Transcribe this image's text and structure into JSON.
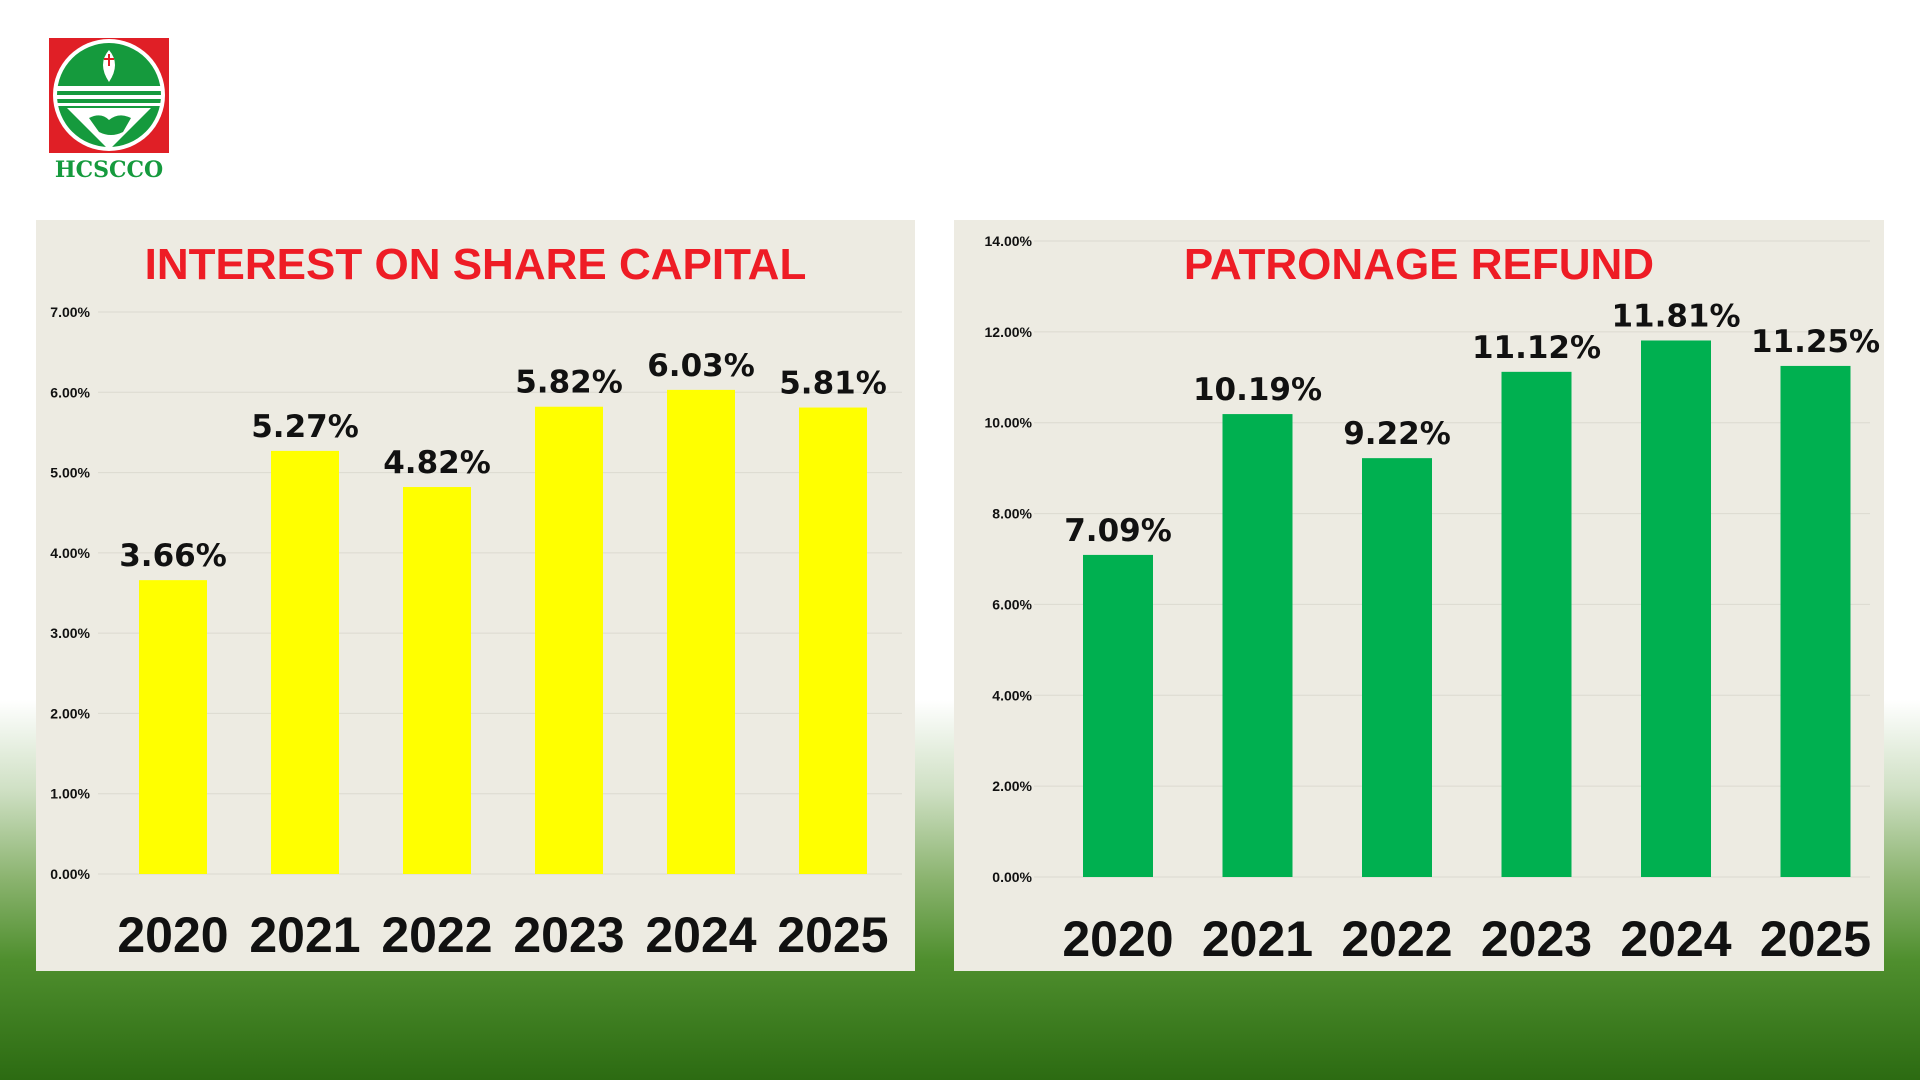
{
  "logo": {
    "text": "HCSCCO",
    "icon": "cooperative-handshake-logo-icon"
  },
  "colors": {
    "left_bars": "#ffff00",
    "right_bars": "#00b050",
    "title": "#ee1c25",
    "panel_bg": "#edebe2",
    "label": "#111111"
  },
  "chart_data": [
    {
      "type": "bar",
      "title": "INTEREST ON SHARE CAPITAL",
      "categories": [
        "2020",
        "2021",
        "2022",
        "2023",
        "2024",
        "2025"
      ],
      "values": [
        3.66,
        5.27,
        4.82,
        5.82,
        6.03,
        5.81
      ],
      "data_labels": [
        "3.66%",
        "5.27%",
        "4.82%",
        "5.82%",
        "6.03%",
        "5.81%"
      ],
      "ylim": [
        0,
        7
      ],
      "yticks": [
        "0.00%",
        "1.00%",
        "2.00%",
        "3.00%",
        "4.00%",
        "5.00%",
        "6.00%",
        "7.00%"
      ],
      "grid": true,
      "bar_color": "#ffff00"
    },
    {
      "type": "bar",
      "title": "PATRONAGE REFUND",
      "categories": [
        "2020",
        "2021",
        "2022",
        "2023",
        "2024",
        "2025"
      ],
      "values": [
        7.09,
        10.19,
        9.22,
        11.12,
        11.81,
        11.25
      ],
      "data_labels": [
        "7.09%",
        "10.19%",
        "9.22%",
        "11.12%",
        "11.81%",
        "11.25%"
      ],
      "ylim": [
        0,
        14
      ],
      "yticks": [
        "0.00%",
        "2.00%",
        "4.00%",
        "6.00%",
        "8.00%",
        "10.00%",
        "12.00%",
        "14.00%"
      ],
      "grid": true,
      "bar_color": "#00b050"
    }
  ]
}
